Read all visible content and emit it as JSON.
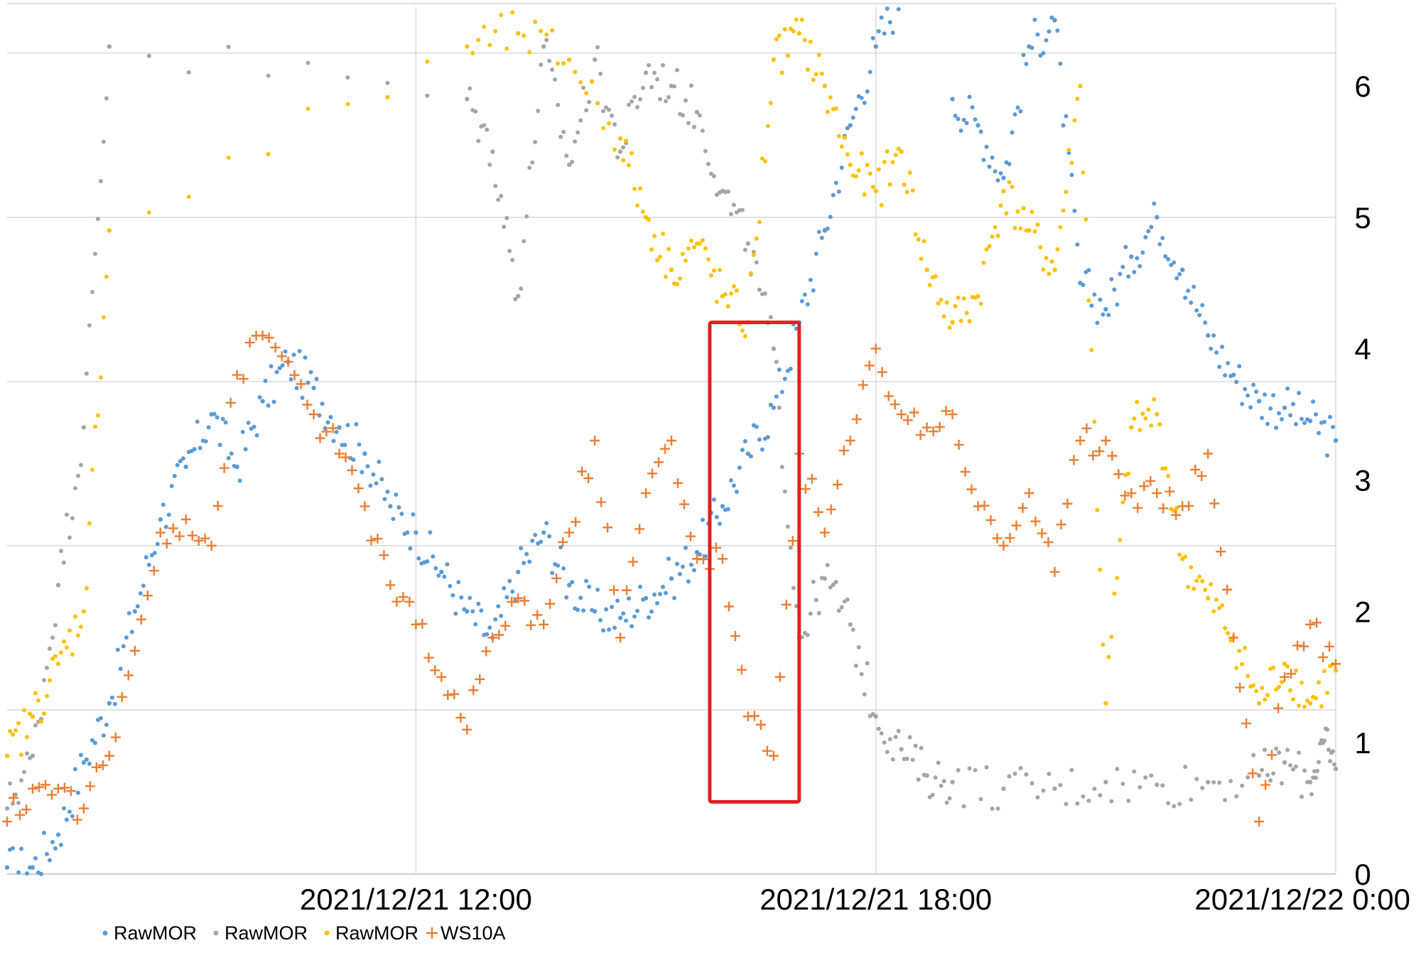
{
  "chart_data": {
    "type": "scatter",
    "title": "",
    "xlabel": "",
    "ylabel": "",
    "x_range": [
      "2021/12/21 06:40",
      "2021/12/22 00:00"
    ],
    "ylim": [
      0,
      6.6
    ],
    "x_ticks": [
      "2021/12/21 12:00",
      "2021/12/21 18:00",
      "2021/12/22 0:00"
    ],
    "y_ticks": [
      "0",
      "1",
      "2",
      "3",
      "4",
      "5",
      "6"
    ],
    "grid": true,
    "legend_position": "bottom-left",
    "colors": {
      "blue": "#5b9bd5",
      "gray": "#a5a5a5",
      "gold": "#ffc000",
      "orange": "#ed7d31",
      "highlight_box": "#e02020"
    },
    "series": [
      {
        "name": "RawMOR",
        "color": "#5b9bd5",
        "marker": "dot",
        "points": [
          [
            "2021/12/21 06:40",
            0.05
          ],
          [
            "2021/12/21 07:00",
            0.05
          ],
          [
            "2021/12/21 07:20",
            0.3
          ],
          [
            "2021/12/21 07:40",
            0.85
          ],
          [
            "2021/12/21 08:00",
            1.3
          ],
          [
            "2021/12/21 08:20",
            2.0
          ],
          [
            "2021/12/21 08:40",
            2.7
          ],
          [
            "2021/12/21 09:00",
            3.1
          ],
          [
            "2021/12/21 09:20",
            3.5
          ],
          [
            "2021/12/21 09:40",
            3.1
          ],
          [
            "2021/12/21 10:00",
            3.6
          ],
          [
            "2021/12/21 10:20",
            3.9
          ],
          [
            "2021/12/21 10:40",
            3.7
          ],
          [
            "2021/12/21 11:00",
            3.4
          ],
          [
            "2021/12/21 11:20",
            3.2
          ],
          [
            "2021/12/21 11:40",
            2.8
          ],
          [
            "2021/12/21 12:00",
            2.6
          ],
          [
            "2021/12/21 12:20",
            2.3
          ],
          [
            "2021/12/21 12:40",
            2.0
          ],
          [
            "2021/12/21 13:00",
            1.8
          ],
          [
            "2021/12/21 13:20",
            2.3
          ],
          [
            "2021/12/21 13:40",
            2.6
          ],
          [
            "2021/12/21 14:00",
            2.2
          ],
          [
            "2021/12/21 14:20",
            2.0
          ],
          [
            "2021/12/21 14:40",
            1.95
          ],
          [
            "2021/12/21 15:00",
            2.1
          ],
          [
            "2021/12/21 15:20",
            2.25
          ],
          [
            "2021/12/21 15:40",
            2.45
          ],
          [
            "2021/12/21 16:00",
            2.8
          ],
          [
            "2021/12/21 16:20",
            3.2
          ],
          [
            "2021/12/21 16:40",
            3.55
          ],
          [
            "2021/12/21 17:00",
            4.2
          ],
          [
            "2021/12/21 17:20",
            4.9
          ],
          [
            "2021/12/21 17:40",
            5.7
          ],
          [
            "2021/12/21 18:00",
            6.3
          ],
          [
            "2021/12/21 18:20",
            6.7
          ],
          [
            "2021/12/21 18:40",
            6.7
          ],
          [
            "2021/12/21 19:00",
            5.9
          ],
          [
            "2021/12/21 19:20",
            5.7
          ],
          [
            "2021/12/21 19:40",
            5.3
          ],
          [
            "2021/12/21 20:00",
            6.3
          ],
          [
            "2021/12/21 20:20",
            6.5
          ],
          [
            "2021/12/21 20:40",
            4.5
          ],
          [
            "2021/12/21 21:00",
            4.3
          ],
          [
            "2021/12/21 21:20",
            4.7
          ],
          [
            "2021/12/21 21:40",
            5.0
          ],
          [
            "2021/12/21 22:00",
            4.6
          ],
          [
            "2021/12/21 22:20",
            4.1
          ],
          [
            "2021/12/21 22:40",
            3.8
          ],
          [
            "2021/12/21 23:00",
            3.6
          ],
          [
            "2021/12/21 23:20",
            3.55
          ],
          [
            "2021/12/21 23:40",
            3.45
          ],
          [
            "2021/12/22 00:00",
            3.3
          ]
        ]
      },
      {
        "name": "RawMOR",
        "color": "#a5a5a5",
        "marker": "dot",
        "points": [
          [
            "2021/12/21 06:40",
            0.5
          ],
          [
            "2021/12/21 07:00",
            0.9
          ],
          [
            "2021/12/21 07:20",
            2.2
          ],
          [
            "2021/12/21 07:40",
            3.4
          ],
          [
            "2021/12/21 08:00",
            6.3
          ],
          [
            "2021/12/21 12:40",
            5.9
          ],
          [
            "2021/12/21 13:00",
            5.5
          ],
          [
            "2021/12/21 13:20",
            4.4
          ],
          [
            "2021/12/21 13:40",
            6.3
          ],
          [
            "2021/12/21 14:00",
            5.4
          ],
          [
            "2021/12/21 14:20",
            6.2
          ],
          [
            "2021/12/21 14:40",
            5.5
          ],
          [
            "2021/12/21 15:00",
            6.1
          ],
          [
            "2021/12/21 15:20",
            6.0
          ],
          [
            "2021/12/21 15:40",
            5.8
          ],
          [
            "2021/12/21 16:00",
            5.2
          ],
          [
            "2021/12/21 16:20",
            4.8
          ],
          [
            "2021/12/21 16:40",
            4.0
          ],
          [
            "2021/12/21 17:00",
            1.8
          ],
          [
            "2021/12/21 17:20",
            2.25
          ],
          [
            "2021/12/21 17:40",
            1.9
          ],
          [
            "2021/12/21 18:00",
            1.2
          ],
          [
            "2021/12/21 18:20",
            0.95
          ],
          [
            "2021/12/21 18:40",
            0.75
          ],
          [
            "2021/12/21 19:00",
            0.7
          ],
          [
            "2021/12/21 19:40",
            0.65
          ],
          [
            "2021/12/21 20:20",
            0.65
          ],
          [
            "2021/12/21 21:00",
            0.7
          ],
          [
            "2021/12/21 21:40",
            0.68
          ],
          [
            "2021/12/21 22:20",
            0.7
          ],
          [
            "2021/12/21 23:00",
            0.75
          ],
          [
            "2021/12/21 23:20",
            0.85
          ],
          [
            "2021/12/21 23:40",
            0.7
          ],
          [
            "2021/12/21 23:50",
            1.0
          ],
          [
            "2021/12/22 00:00",
            0.8
          ]
        ]
      },
      {
        "name": "RawMOR",
        "color": "#ffc000",
        "marker": "dot",
        "points": [
          [
            "2021/12/21 06:40",
            0.9
          ],
          [
            "2021/12/21 07:00",
            1.2
          ],
          [
            "2021/12/21 07:20",
            1.6
          ],
          [
            "2021/12/21 07:40",
            2.0
          ],
          [
            "2021/12/21 08:00",
            4.9
          ],
          [
            "2021/12/21 12:40",
            6.3
          ],
          [
            "2021/12/21 13:20",
            6.4
          ],
          [
            "2021/12/21 14:00",
            6.2
          ],
          [
            "2021/12/21 14:40",
            5.6
          ],
          [
            "2021/12/21 15:00",
            5.0
          ],
          [
            "2021/12/21 15:20",
            4.6
          ],
          [
            "2021/12/21 15:40",
            4.8
          ],
          [
            "2021/12/21 16:00",
            4.4
          ],
          [
            "2021/12/21 16:20",
            4.2
          ],
          [
            "2021/12/21 16:40",
            6.2
          ],
          [
            "2021/12/21 17:00",
            6.4
          ],
          [
            "2021/12/21 17:20",
            6.0
          ],
          [
            "2021/12/21 17:40",
            5.4
          ],
          [
            "2021/12/21 18:00",
            5.2
          ],
          [
            "2021/12/21 18:20",
            5.5
          ],
          [
            "2021/12/21 18:40",
            4.6
          ],
          [
            "2021/12/21 19:00",
            4.2
          ],
          [
            "2021/12/21 19:20",
            4.4
          ],
          [
            "2021/12/21 19:40",
            5.2
          ],
          [
            "2021/12/21 20:00",
            4.9
          ],
          [
            "2021/12/21 20:20",
            4.6
          ],
          [
            "2021/12/21 20:40",
            6.0
          ],
          [
            "2021/12/21 21:00",
            1.3
          ],
          [
            "2021/12/21 21:20",
            3.4
          ],
          [
            "2021/12/21 21:40",
            3.5
          ],
          [
            "2021/12/21 22:00",
            2.4
          ],
          [
            "2021/12/21 22:20",
            2.1
          ],
          [
            "2021/12/21 22:40",
            1.8
          ],
          [
            "2021/12/21 23:00",
            1.3
          ],
          [
            "2021/12/21 23:20",
            1.6
          ],
          [
            "2021/12/21 23:40",
            1.3
          ],
          [
            "2021/12/22 00:00",
            1.55
          ]
        ]
      },
      {
        "name": "WS10A",
        "color": "#ed7d31",
        "marker": "plus",
        "points": [
          [
            "2021/12/21 06:40",
            0.4
          ],
          [
            "2021/12/21 07:00",
            0.65
          ],
          [
            "2021/12/21 07:20",
            0.65
          ],
          [
            "2021/12/21 07:40",
            0.5
          ],
          [
            "2021/12/21 08:00",
            0.9
          ],
          [
            "2021/12/21 08:20",
            1.7
          ],
          [
            "2021/12/21 08:40",
            2.6
          ],
          [
            "2021/12/21 09:00",
            2.7
          ],
          [
            "2021/12/21 09:20",
            2.5
          ],
          [
            "2021/12/21 09:40",
            3.8
          ],
          [
            "2021/12/21 10:00",
            4.1
          ],
          [
            "2021/12/21 10:20",
            3.9
          ],
          [
            "2021/12/21 10:40",
            3.5
          ],
          [
            "2021/12/21 11:00",
            3.2
          ],
          [
            "2021/12/21 11:20",
            2.8
          ],
          [
            "2021/12/21 11:40",
            2.2
          ],
          [
            "2021/12/21 12:00",
            1.9
          ],
          [
            "2021/12/21 12:20",
            1.5
          ],
          [
            "2021/12/21 12:40",
            1.1
          ],
          [
            "2021/12/21 13:00",
            1.8
          ],
          [
            "2021/12/21 13:20",
            2.1
          ],
          [
            "2021/12/21 13:40",
            1.9
          ],
          [
            "2021/12/21 14:00",
            2.6
          ],
          [
            "2021/12/21 14:20",
            3.3
          ],
          [
            "2021/12/21 14:40",
            1.8
          ],
          [
            "2021/12/21 15:00",
            2.9
          ],
          [
            "2021/12/21 15:20",
            3.3
          ],
          [
            "2021/12/21 15:40",
            2.4
          ],
          [
            "2021/12/21 16:00",
            2.4
          ],
          [
            "2021/12/21 16:20",
            1.2
          ],
          [
            "2021/12/21 16:40",
            0.9
          ],
          [
            "2021/12/21 17:00",
            3.2
          ],
          [
            "2021/12/21 17:20",
            2.6
          ],
          [
            "2021/12/21 17:40",
            3.3
          ],
          [
            "2021/12/21 18:00",
            4.0
          ],
          [
            "2021/12/21 18:20",
            3.5
          ],
          [
            "2021/12/21 18:40",
            3.4
          ],
          [
            "2021/12/21 19:00",
            3.5
          ],
          [
            "2021/12/21 19:20",
            2.8
          ],
          [
            "2021/12/21 19:40",
            2.5
          ],
          [
            "2021/12/21 20:00",
            2.9
          ],
          [
            "2021/12/21 20:20",
            2.3
          ],
          [
            "2021/12/21 20:40",
            3.3
          ],
          [
            "2021/12/21 21:00",
            3.3
          ],
          [
            "2021/12/21 21:20",
            2.9
          ],
          [
            "2021/12/21 21:40",
            2.9
          ],
          [
            "2021/12/21 22:00",
            2.8
          ],
          [
            "2021/12/21 22:20",
            3.2
          ],
          [
            "2021/12/21 22:40",
            1.8
          ],
          [
            "2021/12/21 23:00",
            0.4
          ],
          [
            "2021/12/21 23:20",
            1.5
          ],
          [
            "2021/12/21 23:40",
            1.9
          ],
          [
            "2021/12/22 00:00",
            1.6
          ]
        ]
      }
    ],
    "annotations": [
      {
        "type": "rectangle",
        "color": "#e02020",
        "x_range": [
          "2021/12/21 15:50",
          "2021/12/21 17:00"
        ],
        "y_range": [
          0.55,
          4.2
        ]
      }
    ]
  }
}
